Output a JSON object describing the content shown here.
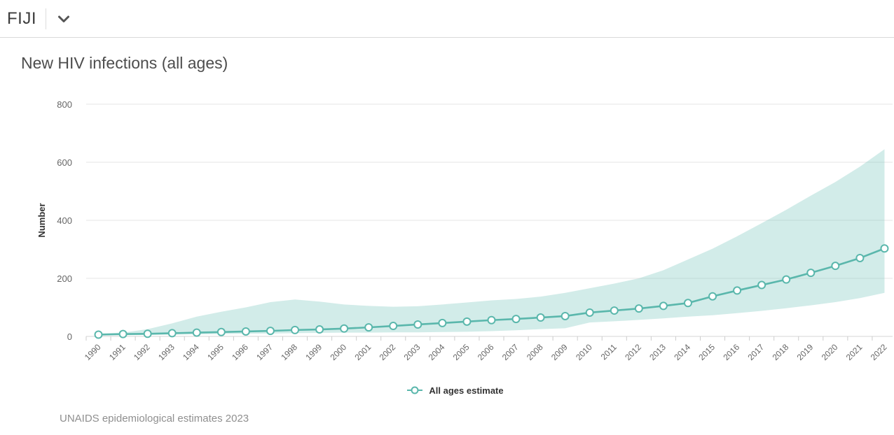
{
  "header": {
    "country_selector": {
      "label": "FIJI",
      "chevron_icon": "chevron-down"
    }
  },
  "page_title": "New HIV infections (all ages)",
  "legend": {
    "items": [
      {
        "label": "All ages estimate",
        "marker": "open-circle-with-line"
      }
    ]
  },
  "footer": {
    "source": "UNAIDS epidemiological estimates 2023"
  },
  "colors": {
    "accent": "#5ab7ac",
    "band_fill": "#5ab7ac",
    "band_opacity": 0.27,
    "marker_fill": "#ffffff",
    "grid": "#e6e6e6",
    "axis_line": "#d4d4d4",
    "tick": "#cccccc",
    "axis_text": "#666666",
    "axis_title_text": "#333333",
    "title_text": "#4d4d4d",
    "header_text": "#3b3b3b",
    "chevron": "#555555",
    "footer_text": "#8f8f8f"
  },
  "chart_data": {
    "type": "line",
    "title": "New HIV infections (all ages)",
    "xlabel": "",
    "ylabel": "Number",
    "ylim": [
      0,
      800
    ],
    "yticks": [
      0,
      200,
      400,
      600,
      800
    ],
    "grid": true,
    "legend_position": "bottom",
    "categories": [
      "1990",
      "1991",
      "1992",
      "1993",
      "1994",
      "1995",
      "1996",
      "1997",
      "1998",
      "1999",
      "2000",
      "2001",
      "2002",
      "2003",
      "2004",
      "2005",
      "2006",
      "2007",
      "2008",
      "2009",
      "2010",
      "2011",
      "2012",
      "2013",
      "2014",
      "2015",
      "2016",
      "2017",
      "2018",
      "2019",
      "2020",
      "2021",
      "2022"
    ],
    "series": [
      {
        "name": "All ages estimate",
        "type": "line-with-markers",
        "values": [
          6,
          8,
          9,
          11,
          13,
          15,
          17,
          19,
          22,
          24,
          27,
          31,
          36,
          41,
          46,
          51,
          56,
          60,
          65,
          70,
          82,
          89,
          96,
          105,
          115,
          138,
          158,
          177,
          196,
          219,
          243,
          270,
          303
        ]
      },
      {
        "name": "Uncertainty range",
        "type": "arearange",
        "upper": [
          10,
          13,
          25,
          45,
          68,
          85,
          100,
          118,
          127,
          120,
          110,
          105,
          102,
          104,
          110,
          117,
          124,
          129,
          137,
          150,
          166,
          182,
          200,
          228,
          265,
          302,
          345,
          390,
          436,
          485,
          532,
          585,
          645
        ],
        "lower": [
          3,
          4,
          5,
          6,
          7,
          8,
          9,
          10,
          11,
          12,
          13,
          13,
          14,
          14,
          15,
          16,
          18,
          21,
          25,
          28,
          48,
          52,
          57,
          62,
          68,
          73,
          80,
          88,
          97,
          107,
          118,
          132,
          150
        ]
      }
    ]
  }
}
